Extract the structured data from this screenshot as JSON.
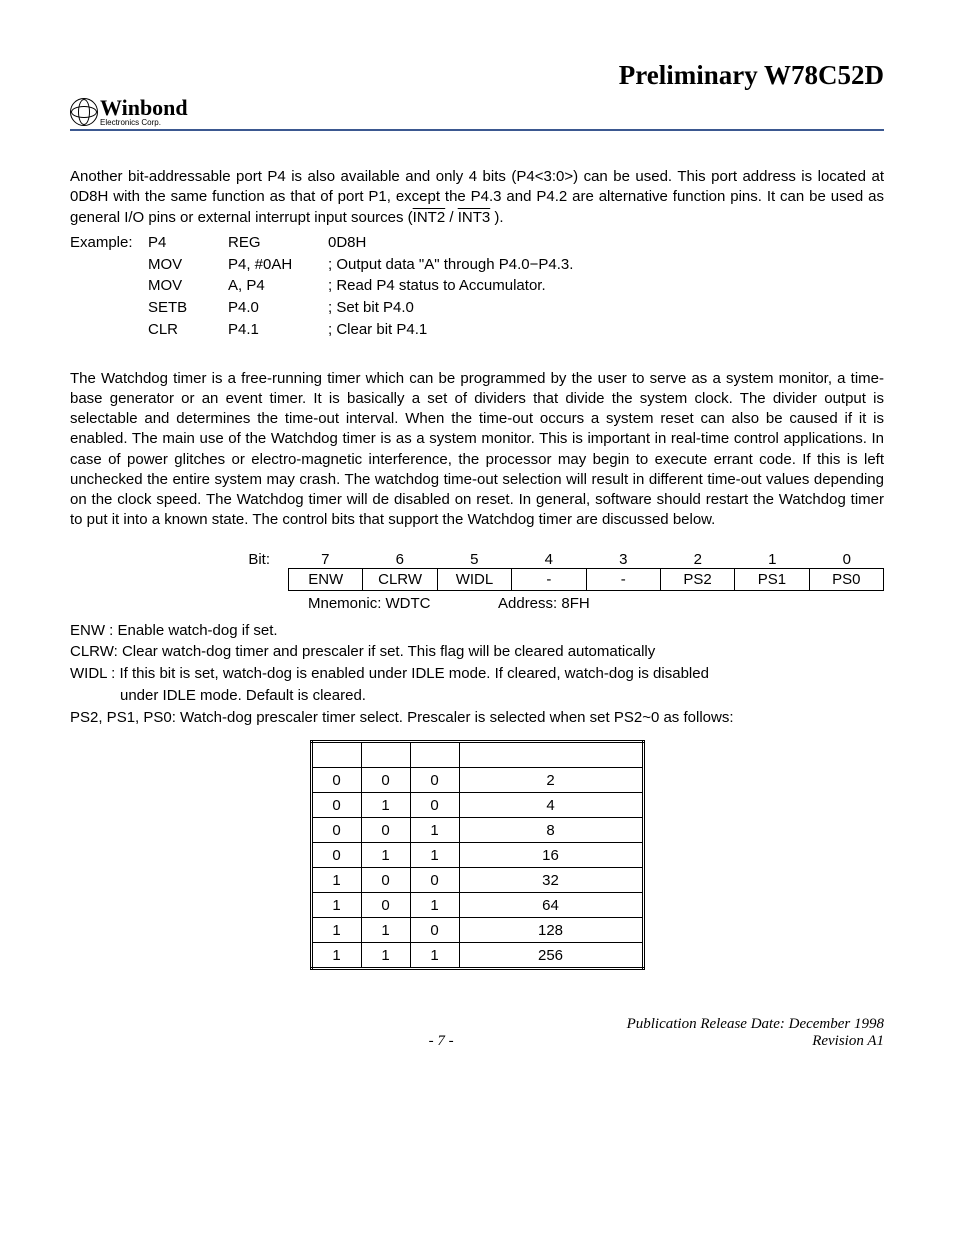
{
  "header": {
    "title": "Preliminary W78C52D"
  },
  "logo": {
    "name": "Winbond",
    "sub": "Electronics Corp."
  },
  "para1_a": "Another bit-addressable port P4 is also available and only 4 bits (P4<3:0>) can be used. This port address is located at 0D8H with the same function as that of port P1, except the P4.3 and P4.2 are alternative function pins. It can be used as general I/O pins or external interrupt input sources (",
  "para1_int2": "INT2",
  "para1_slash": " / ",
  "para1_int3": "INT3",
  "para1_end": " ).",
  "code": {
    "r0": {
      "a": "Example:",
      "b": "P4",
      "c": "REG",
      "d": "0D8H"
    },
    "r1": {
      "a": "",
      "b": "MOV",
      "c": "P4, #0AH",
      "d": "; Output data \"A\" through P4.0−P4.3."
    },
    "r2": {
      "a": "",
      "b": "MOV",
      "c": "A, P4",
      "d": "; Read P4 status to Accumulator."
    },
    "r3": {
      "a": "",
      "b": "SETB",
      "c": "P4.0",
      "d": "; Set bit P4.0"
    },
    "r4": {
      "a": "",
      "b": "CLR",
      "c": "P4.1",
      "d": "; Clear bit P4.1"
    }
  },
  "para2": "The Watchdog timer is a free-running timer which can be programmed by the user to serve as a system monitor, a time-base generator or an event timer. It is basically a set of dividers that  divide the system clock. The divider output is selectable and determines the time-out interval. When the time-out occurs a system reset can also be caused if it is enabled. The main use of the Watchdog timer is as a system monitor. This is important in real-time control applications. In case of power glitches or electro-magnetic interference, the processor may begin to execute errant code. If this is left unchecked the entire system may crash. The watchdog time-out selection will result in different time-out values depending on the clock speed. The Watchdog timer will de disabled on reset. In general, software should restart the Watchdog timer to put it into a known state. The control bits that support the Watchdog timer are discussed below.",
  "bits": {
    "label": "Bit:",
    "nums": [
      "7",
      "6",
      "5",
      "4",
      "3",
      "2",
      "1",
      "0"
    ],
    "regs": [
      "ENW",
      "CLRW",
      "WIDL",
      "-",
      "-",
      "PS2",
      "PS1",
      "PS0"
    ],
    "mnem": "Mnemonic: WDTC",
    "addr": "Address: 8FH"
  },
  "defs": {
    "enw": "ENW  : Enable watch-dog if set.",
    "clrw": "CLRW: Clear watch-dog timer and prescaler if set. This flag will be cleared automatically",
    "widl1": "WIDL : If this bit is set, watch-dog is enabled under IDLE mode. If cleared, watch-dog is disabled",
    "widl2": "under IDLE mode. Default is cleared.",
    "ps": "PS2, PS1, PS0: Watch-dog prescaler timer select. Prescaler is selected when set PS2~0 as follows:"
  },
  "prescaler": {
    "rows": [
      {
        "p2": "0",
        "p1": "0",
        "p0": "0",
        "v": "2"
      },
      {
        "p2": "0",
        "p1": "1",
        "p0": "0",
        "v": "4"
      },
      {
        "p2": "0",
        "p1": "0",
        "p0": "1",
        "v": "8"
      },
      {
        "p2": "0",
        "p1": "1",
        "p0": "1",
        "v": "16"
      },
      {
        "p2": "1",
        "p1": "0",
        "p0": "0",
        "v": "32"
      },
      {
        "p2": "1",
        "p1": "0",
        "p0": "1",
        "v": "64"
      },
      {
        "p2": "1",
        "p1": "1",
        "p0": "0",
        "v": "128"
      },
      {
        "p2": "1",
        "p1": "1",
        "p0": "1",
        "v": "256"
      }
    ]
  },
  "footer": {
    "pub": "Publication Release Date: December 1998",
    "page": "- 7 -",
    "rev": "Revision A1"
  }
}
